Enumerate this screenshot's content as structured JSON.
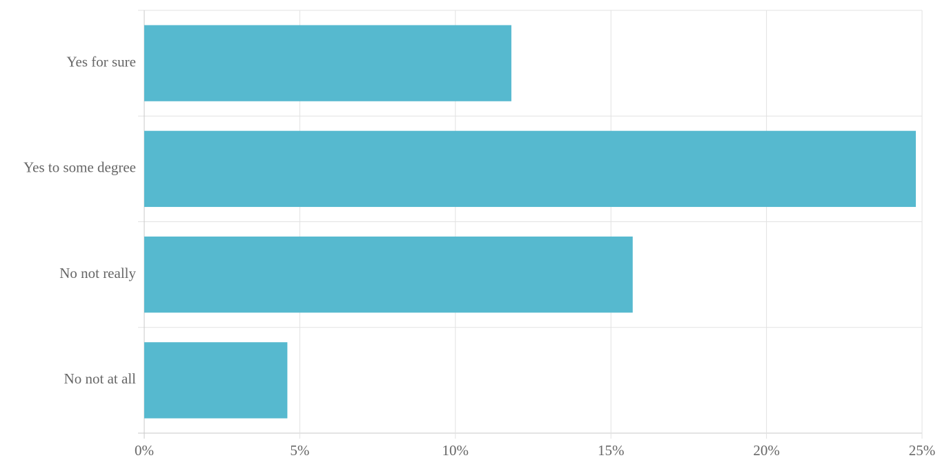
{
  "chart_data": {
    "type": "bar",
    "orientation": "horizontal",
    "categories": [
      "Yes for sure",
      "Yes to some degree",
      "No not really",
      "No not at all"
    ],
    "values": [
      11.8,
      24.8,
      15.7,
      4.6
    ],
    "color": "#56b9cf",
    "xlim": [
      0,
      25
    ],
    "xticks": [
      {
        "value": 0,
        "label": "0%"
      },
      {
        "value": 5,
        "label": "5%"
      },
      {
        "value": 10,
        "label": "10%"
      },
      {
        "value": 15,
        "label": "15%"
      },
      {
        "value": 20,
        "label": "20%"
      },
      {
        "value": 25,
        "label": "25%"
      }
    ],
    "grid": true
  }
}
